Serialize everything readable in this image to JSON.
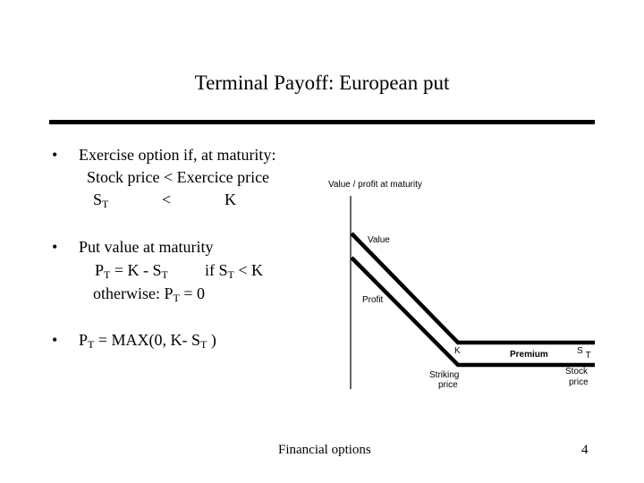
{
  "title": "Terminal Payoff: European put",
  "bullets": [
    {
      "marker": "•",
      "line1": "Exercise option if, at maturity:",
      "line2": "Stock price < Exercice price",
      "line3": {
        "s": "S",
        "s_sub": "T",
        "lt": "<",
        "k": "K"
      }
    },
    {
      "marker": "•",
      "line1": "Put value at maturity",
      "line2": {
        "p": "P",
        "p_sub": "T",
        "eq": " = K -  S",
        "s_sub": "T",
        "if": "if S",
        "if_sub": "T",
        "tail": " < K"
      },
      "line3": {
        "text": "otherwise: P",
        "sub": "T",
        "tail": " = 0"
      }
    },
    {
      "marker": "•",
      "line1": {
        "p": "P",
        "p_sub": "T",
        "mid": " = MAX(0, K- S",
        "s_sub": "T",
        "tail": " )"
      }
    }
  ],
  "diagram": {
    "ylabel": "Value / profit at maturity",
    "value_label": "Value",
    "profit_label": "Profit",
    "k_label": "K",
    "premium_label": "Premium",
    "st_label": "S",
    "st_sub": "T",
    "striking_label_1": "Striking",
    "striking_label_2": "price",
    "stock_label_1": "Stock",
    "stock_label_2": "price"
  },
  "footer": {
    "center": "Financial options",
    "page": "4"
  }
}
